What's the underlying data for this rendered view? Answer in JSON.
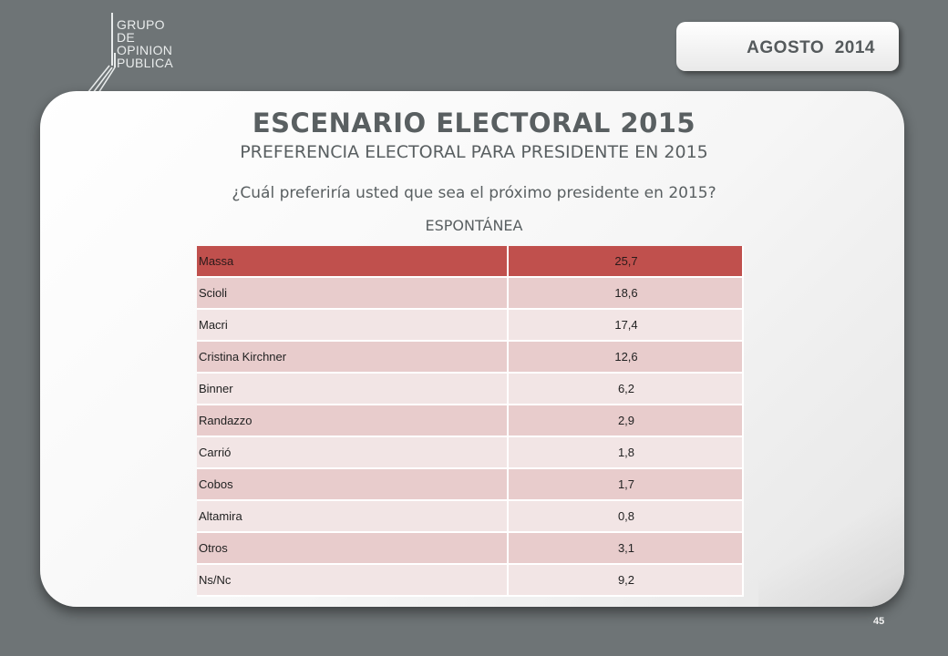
{
  "logo": {
    "lines": [
      "GRUPO",
      "DE",
      "OPINION",
      "PUBLICA"
    ]
  },
  "date_badge": "AGOSTO  2014",
  "header": {
    "title": "ESCENARIO ELECTORAL 2015",
    "subtitle": "PREFERENCIA ELECTORAL PARA PRESIDENTE EN 2015",
    "question": "¿Cuál preferiría usted que sea el próximo presidente en 2015?",
    "type": "ESPONTÁNEA"
  },
  "table": {
    "rows": [
      {
        "name": "Massa",
        "value": "25,7"
      },
      {
        "name": "Scioli",
        "value": "18,6"
      },
      {
        "name": "Macri",
        "value": "17,4"
      },
      {
        "name": "Cristina Kirchner",
        "value": "12,6"
      },
      {
        "name": "Binner",
        "value": "6,2"
      },
      {
        "name": "Randazzo",
        "value": "2,9"
      },
      {
        "name": "Carrió",
        "value": "1,8"
      },
      {
        "name": "Cobos",
        "value": "1,7"
      },
      {
        "name": "Altamira",
        "value": "0,8"
      },
      {
        "name": "Otros",
        "value": "3,1"
      },
      {
        "name": "Ns/Nc",
        "value": "9,2"
      }
    ]
  },
  "page_number": "45",
  "colors": {
    "background": "#6e7476",
    "highlight_row": "#c0504d",
    "row_dark": "#e8cccc",
    "row_light": "#f2e5e5",
    "text": "#595f61"
  }
}
